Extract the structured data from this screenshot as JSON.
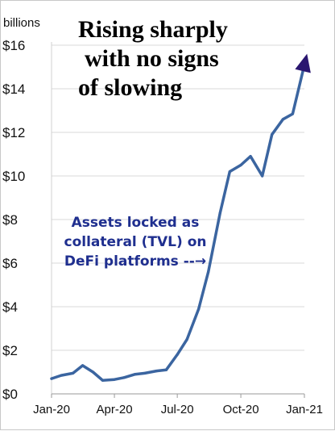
{
  "chart_data": {
    "type": "line",
    "title_lines": [
      "Rising sharply",
      "with no signs",
      "of slowing"
    ],
    "ylabel": "billions",
    "ylim": [
      0,
      16
    ],
    "yticks": [
      0,
      2,
      4,
      6,
      8,
      10,
      12,
      14,
      16
    ],
    "ytick_labels": [
      "$0",
      "$2",
      "$4",
      "$6",
      "$8",
      "$10",
      "$12",
      "$14",
      "$16"
    ],
    "xlim": [
      "2020-01-01",
      "2021-01-01"
    ],
    "xticks": [
      "2020-01-01",
      "2020-04-01",
      "2020-07-01",
      "2020-10-01",
      "2021-01-01"
    ],
    "xtick_labels": [
      "Jan-20",
      "Apr-20",
      "Jul-20",
      "Oct-20",
      "Jan-21"
    ],
    "grid": "horizontal",
    "annotation_lines": [
      "Assets locked as",
      "collateral (TVL) on",
      "DeFi platforms --→"
    ],
    "series": [
      {
        "color": "#3b65a0",
        "points": [
          [
            "2020-01-01",
            0.7
          ],
          [
            "2020-01-15",
            0.85
          ],
          [
            "2020-02-01",
            0.95
          ],
          [
            "2020-02-15",
            1.3
          ],
          [
            "2020-03-01",
            1.0
          ],
          [
            "2020-03-15",
            0.62
          ],
          [
            "2020-04-01",
            0.66
          ],
          [
            "2020-04-15",
            0.75
          ],
          [
            "2020-05-01",
            0.9
          ],
          [
            "2020-05-15",
            0.95
          ],
          [
            "2020-06-01",
            1.05
          ],
          [
            "2020-06-15",
            1.1
          ],
          [
            "2020-07-01",
            1.8
          ],
          [
            "2020-07-15",
            2.5
          ],
          [
            "2020-08-01",
            3.9
          ],
          [
            "2020-08-15",
            5.6
          ],
          [
            "2020-09-01",
            8.3
          ],
          [
            "2020-09-15",
            10.2
          ],
          [
            "2020-10-01",
            10.5
          ],
          [
            "2020-10-15",
            10.9
          ],
          [
            "2020-11-01",
            10.0
          ],
          [
            "2020-11-15",
            11.9
          ],
          [
            "2020-12-01",
            12.6
          ],
          [
            "2020-12-15",
            12.85
          ],
          [
            "2021-01-01",
            15.1
          ]
        ]
      }
    ],
    "arrowhead_color": "#2a1670"
  }
}
